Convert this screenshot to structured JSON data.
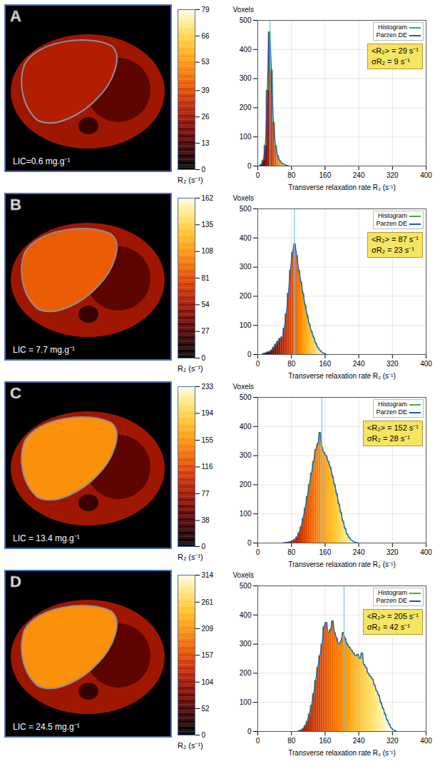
{
  "chart_data": [
    {
      "type": "histogram",
      "panel": "A",
      "image_label": "LIC=0.6 mg.g⁻¹",
      "colorbar": {
        "label": "R₂ (s⁻¹)",
        "range": [
          0,
          79
        ],
        "ticks": [
          0,
          13,
          26,
          39,
          53,
          66,
          79
        ]
      },
      "x_label": "Transverse relaxation rate R₂ (s⁻¹)",
      "y_label": "Voxels",
      "bins": [
        5,
        10,
        15,
        20,
        25,
        30,
        35,
        40,
        45,
        50,
        55,
        60,
        65,
        70,
        75
      ],
      "series": [
        {
          "name": "Histogram",
          "color": "#3cb043",
          "values": [
            5,
            20,
            70,
            260,
            460,
            330,
            150,
            70,
            35,
            18,
            10,
            6,
            3,
            1
          ]
        },
        {
          "name": "Parzen DE",
          "color": "#1f4fd8",
          "values": [
            5,
            20,
            70,
            260,
            460,
            330,
            150,
            70,
            35,
            18,
            10,
            6,
            3,
            1
          ]
        }
      ],
      "mean": 29,
      "annotations": [
        "<R₂> = 29 s⁻¹",
        "σR₂ = 9 s⁻¹"
      ],
      "xlim": [
        0,
        400
      ],
      "xticks": [
        0,
        80,
        160,
        240,
        320,
        400
      ],
      "ylim": [
        0,
        500
      ],
      "yticks": [
        0,
        100,
        200,
        300,
        400,
        500
      ],
      "grid": true,
      "legend": "top-right"
    },
    {
      "type": "histogram",
      "panel": "B",
      "image_label": "LIC = 7.7 mg.g⁻¹",
      "colorbar": {
        "label": "R₂ (s⁻¹)",
        "range": [
          0,
          162
        ],
        "ticks": [
          0,
          27,
          54,
          81,
          108,
          135,
          162
        ]
      },
      "x_label": "Transverse relaxation rate R₂ (s⁻¹)",
      "y_label": "Voxels",
      "bins": [
        10,
        15,
        20,
        25,
        30,
        35,
        40,
        45,
        50,
        55,
        60,
        65,
        70,
        75,
        80,
        85,
        90,
        95,
        100,
        105,
        110,
        115,
        120,
        125,
        130,
        135,
        140,
        145,
        150,
        155,
        160,
        165
      ],
      "series": [
        {
          "name": "Histogram",
          "color": "#3cb043",
          "values": [
            3,
            5,
            8,
            10,
            15,
            25,
            35,
            45,
            55,
            60,
            90,
            140,
            210,
            290,
            350,
            380,
            340,
            290,
            250,
            210,
            170,
            135,
            105,
            80,
            60,
            40,
            25,
            15,
            8,
            4,
            1
          ]
        },
        {
          "name": "Parzen DE",
          "color": "#1f4fd8",
          "values": [
            3,
            5,
            8,
            10,
            15,
            25,
            35,
            45,
            55,
            60,
            90,
            140,
            210,
            290,
            350,
            380,
            340,
            290,
            250,
            210,
            170,
            135,
            105,
            80,
            60,
            40,
            25,
            15,
            8,
            4,
            1
          ]
        }
      ],
      "mean": 87,
      "annotations": [
        "<R₂> = 87 s⁻¹",
        "σR₂ = 23 s⁻¹"
      ],
      "xlim": [
        0,
        400
      ],
      "xticks": [
        0,
        80,
        160,
        240,
        320,
        400
      ],
      "ylim": [
        0,
        500
      ],
      "yticks": [
        0,
        100,
        200,
        300,
        400,
        500
      ],
      "grid": true,
      "legend": "top-right"
    },
    {
      "type": "histogram",
      "panel": "C",
      "image_label": "LIC = 13.4 mg.g⁻¹",
      "colorbar": {
        "label": "R₂ (s⁻¹)",
        "range": [
          0,
          233
        ],
        "ticks": [
          0,
          38,
          77,
          116,
          155,
          194,
          233
        ]
      },
      "x_label": "Transverse relaxation rate R₂ (s⁻¹)",
      "y_label": "Voxels",
      "bins": [
        60,
        65,
        70,
        75,
        80,
        85,
        90,
        95,
        100,
        105,
        110,
        115,
        120,
        125,
        130,
        135,
        140,
        145,
        150,
        155,
        160,
        165,
        170,
        175,
        180,
        185,
        190,
        195,
        200,
        205,
        210,
        215,
        220,
        225,
        230,
        235,
        240
      ],
      "series": [
        {
          "name": "Histogram",
          "color": "#3cb043",
          "values": [
            1,
            2,
            3,
            5,
            8,
            12,
            20,
            35,
            55,
            85,
            120,
            160,
            200,
            240,
            280,
            320,
            340,
            380,
            330,
            310,
            300,
            280,
            260,
            230,
            200,
            170,
            135,
            105,
            75,
            50,
            30,
            18,
            10,
            5,
            2,
            1
          ]
        },
        {
          "name": "Parzen DE",
          "color": "#1f4fd8",
          "values": [
            1,
            2,
            3,
            5,
            8,
            12,
            20,
            35,
            55,
            85,
            120,
            160,
            200,
            240,
            280,
            320,
            340,
            380,
            330,
            310,
            300,
            280,
            260,
            230,
            200,
            170,
            135,
            105,
            75,
            50,
            30,
            18,
            10,
            5,
            2,
            1
          ]
        }
      ],
      "mean": 152,
      "annotations": [
        "<R₂> = 152 s⁻¹",
        "σR₂ = 28 s⁻¹"
      ],
      "xlim": [
        0,
        400
      ],
      "xticks": [
        0,
        80,
        160,
        240,
        320,
        400
      ],
      "ylim": [
        0,
        500
      ],
      "yticks": [
        0,
        100,
        200,
        300,
        400,
        500
      ],
      "grid": true,
      "legend": "top-right"
    },
    {
      "type": "histogram",
      "panel": "D",
      "image_label": "LIC = 24.5 mg.g⁻¹",
      "colorbar": {
        "label": "R₂ (s⁻¹)",
        "range": [
          0,
          314
        ],
        "ticks": [
          0,
          52,
          104,
          157,
          209,
          261,
          314
        ]
      },
      "x_label": "Transverse relaxation rate R₂ (s⁻¹)",
      "y_label": "Voxels",
      "bins": [
        95,
        100,
        105,
        110,
        115,
        120,
        125,
        130,
        135,
        140,
        145,
        150,
        155,
        160,
        165,
        170,
        175,
        180,
        185,
        190,
        195,
        200,
        205,
        210,
        215,
        220,
        225,
        230,
        235,
        240,
        245,
        250,
        255,
        260,
        265,
        270,
        275,
        280,
        285,
        290,
        295,
        300,
        305,
        310,
        315,
        320,
        325,
        330
      ],
      "series": [
        {
          "name": "Histogram",
          "color": "#3cb043",
          "values": [
            2,
            5,
            10,
            20,
            35,
            60,
            90,
            130,
            175,
            220,
            260,
            300,
            360,
            375,
            340,
            350,
            380,
            340,
            320,
            300,
            310,
            340,
            320,
            300,
            290,
            280,
            270,
            260,
            265,
            250,
            270,
            230,
            220,
            200,
            190,
            180,
            160,
            140,
            125,
            100,
            80,
            60,
            40,
            25,
            12,
            5,
            2
          ]
        },
        {
          "name": "Parzen DE",
          "color": "#1f4fd8",
          "values": [
            2,
            5,
            10,
            20,
            35,
            60,
            90,
            130,
            175,
            220,
            260,
            300,
            360,
            375,
            340,
            350,
            380,
            340,
            320,
            300,
            310,
            340,
            320,
            300,
            290,
            280,
            270,
            260,
            265,
            250,
            270,
            230,
            220,
            200,
            190,
            180,
            160,
            140,
            125,
            100,
            80,
            60,
            40,
            25,
            12,
            5,
            2
          ]
        }
      ],
      "mean": 205,
      "annotations": [
        "<R₂> = 205 s⁻¹",
        "σR₂ = 42 s⁻¹"
      ],
      "xlim": [
        0,
        400
      ],
      "xticks": [
        0,
        80,
        160,
        240,
        320,
        400
      ],
      "ylim": [
        0,
        500
      ],
      "yticks": [
        0,
        100,
        200,
        300,
        400,
        500
      ],
      "grid": true,
      "legend": "top-right"
    }
  ]
}
